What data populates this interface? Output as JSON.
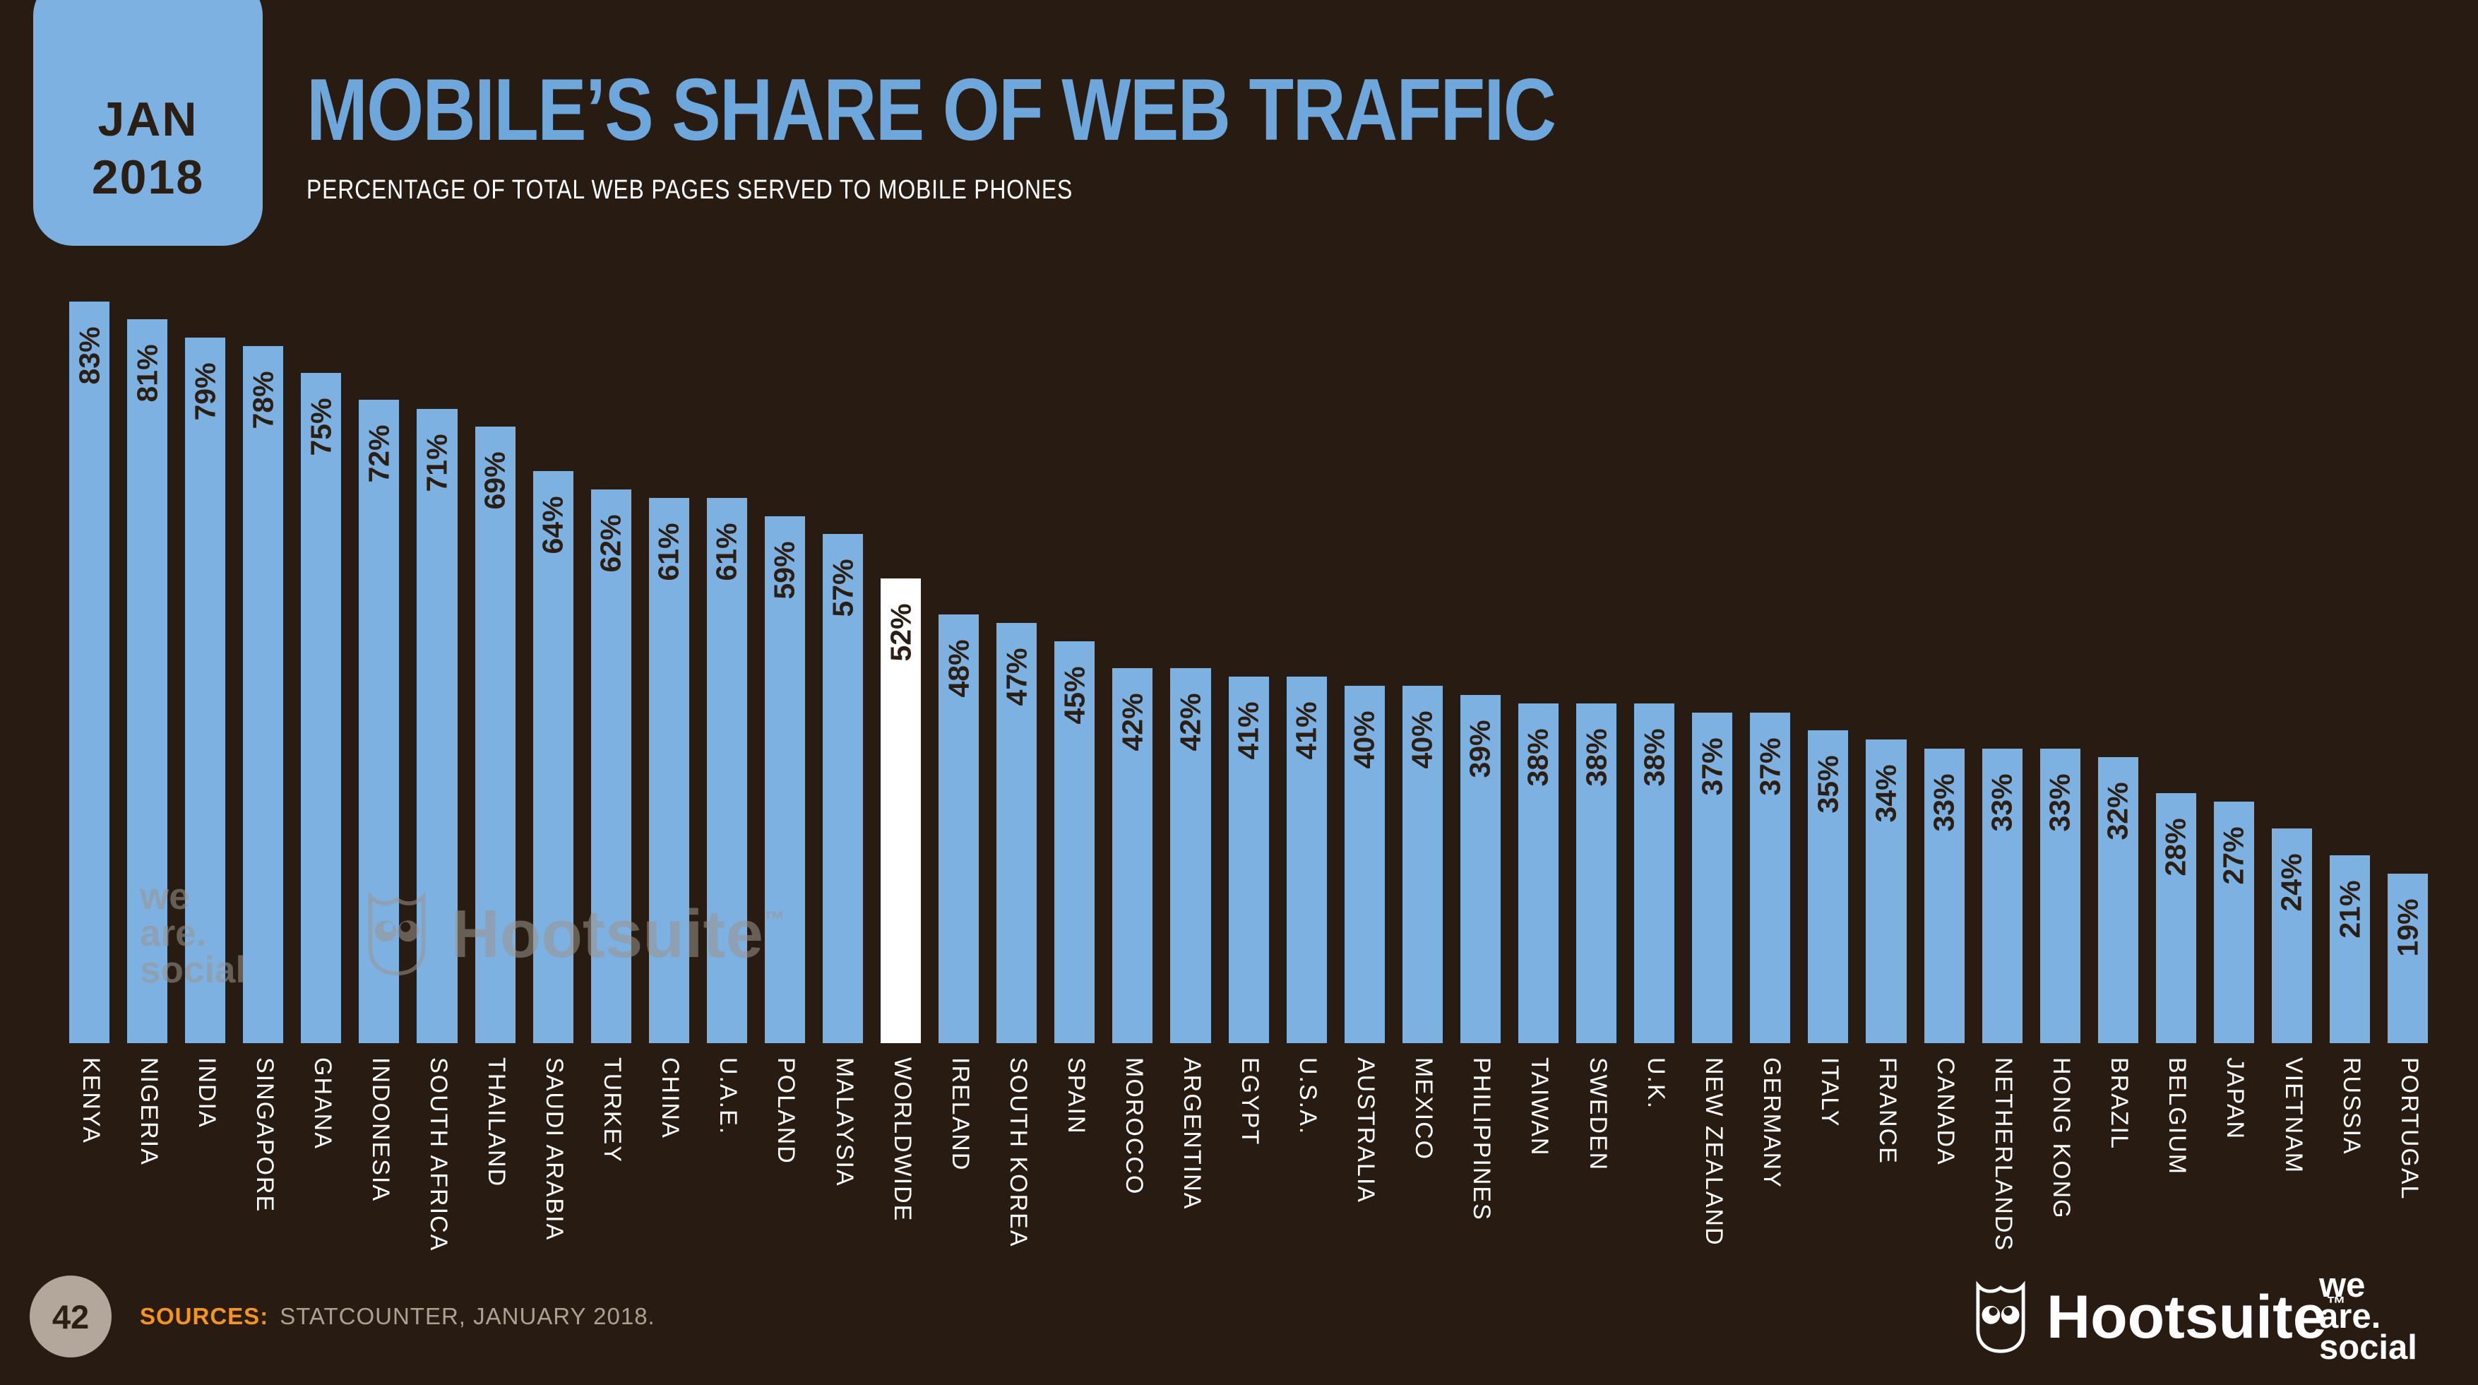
{
  "header": {
    "date_badge": [
      "JAN",
      "2018"
    ],
    "title": "MOBILE’S SHARE OF WEB TRAFFIC",
    "subtitle": "PERCENTAGE OF TOTAL WEB PAGES SERVED TO MOBILE PHONES"
  },
  "watermark": {
    "lines": [
      "we",
      "are.",
      "social"
    ],
    "brand": "Hootsuite",
    "tm": "™"
  },
  "footer": {
    "page_number": "42",
    "sources_label": "SOURCES:",
    "sources_text": "STATCOUNTER, JANUARY 2018.",
    "hootsuite_brand": "Hootsuite",
    "hootsuite_tm": "™",
    "we_are_social_lines": [
      "we",
      "are.",
      "social"
    ]
  },
  "colors": {
    "bg": "#281c12",
    "bar": "#7db1e2",
    "bar_highlight": "#ffffff",
    "title": "#6ea7db",
    "text_light": "#ffffff",
    "orange": "#f7941d",
    "taupe": "#b3a79b",
    "source_text": "#ada092",
    "value_text": "#2b1e12",
    "watermark": "#9b948c"
  },
  "chart_data": {
    "type": "bar",
    "title": "MOBILE’S SHARE OF WEB TRAFFIC",
    "subtitle": "PERCENTAGE OF TOTAL WEB PAGES SERVED TO MOBILE PHONES",
    "unit": "%",
    "value_suffix": "%",
    "ylim": [
      0,
      95
    ],
    "grid": false,
    "legend": "none",
    "highlight_category": "WORLDWIDE",
    "categories": [
      "KENYA",
      "NIGERIA",
      "INDIA",
      "SINGAPORE",
      "GHANA",
      "INDONESIA",
      "SOUTH AFRICA",
      "THAILAND",
      "SAUDI ARABIA",
      "TURKEY",
      "CHINA",
      "U.A.E.",
      "POLAND",
      "MALAYSIA",
      "WORLDWIDE",
      "IRELAND",
      "SOUTH KOREA",
      "SPAIN",
      "MOROCCO",
      "ARGENTINA",
      "EGYPT",
      "U.S.A.",
      "AUSTRALIA",
      "MEXICO",
      "PHILIPPINES",
      "TAIWAN",
      "SWEDEN",
      "U.K.",
      "NEW ZEALAND",
      "GERMANY",
      "ITALY",
      "FRANCE",
      "CANADA",
      "NETHERLANDS",
      "HONG KONG",
      "BRAZIL",
      "BELGIUM",
      "JAPAN",
      "VIETNAM",
      "RUSSIA",
      "PORTUGAL"
    ],
    "values": [
      83,
      81,
      79,
      78,
      75,
      72,
      71,
      69,
      64,
      62,
      61,
      61,
      59,
      57,
      52,
      48,
      47,
      45,
      42,
      42,
      41,
      41,
      40,
      40,
      39,
      38,
      38,
      38,
      37,
      37,
      35,
      34,
      33,
      33,
      33,
      32,
      28,
      27,
      24,
      21,
      19
    ]
  }
}
